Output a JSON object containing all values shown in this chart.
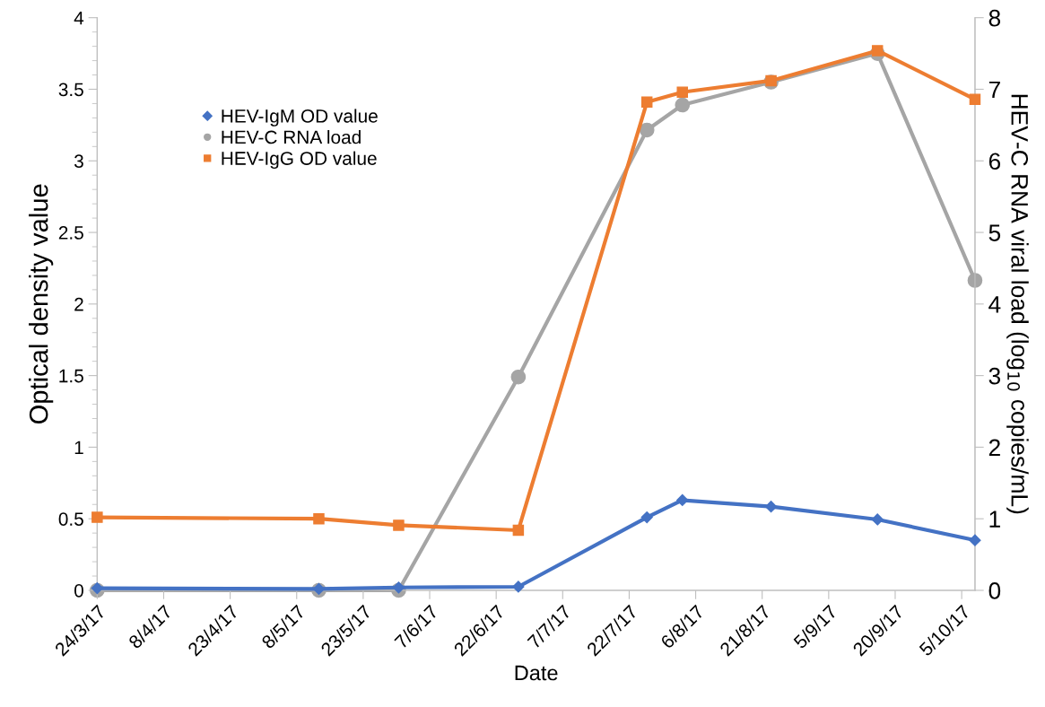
{
  "chart_data": {
    "type": "line",
    "xlabel": "Date",
    "ylabel": "Optical density value",
    "y2label": "HEV-C RNA viral load (log$_{10}$ copies/mL)",
    "x": [
      "2017-03-24",
      "2017-05-13",
      "2017-05-31",
      "2017-06-27",
      "2017-07-26",
      "2017-08-03",
      "2017-08-23",
      "2017-09-16",
      "2017-10-08"
    ],
    "series": [
      {
        "name": "HEV-IgM OD value",
        "color": "#4472c4",
        "marker": "diamond",
        "values": [
          0.015,
          0.01,
          0.02,
          0.025,
          0.51,
          0.63,
          0.585,
          0.495,
          0.35
        ]
      },
      {
        "name": "HEV-C RNA load",
        "color": "#a5a5a5",
        "marker": "circle",
        "axis": "y2",
        "values": [
          0,
          0,
          0,
          2.98,
          6.43,
          6.78,
          7.1,
          7.5,
          4.33
        ]
      },
      {
        "name": "HEV-IgG OD value",
        "color": "#ed7d31",
        "marker": "square",
        "values": [
          0.51,
          0.5,
          0.455,
          0.42,
          3.41,
          3.48,
          3.56,
          3.77,
          3.43
        ]
      }
    ],
    "xlim": [
      "2017-03-24",
      "2017-10-08"
    ],
    "xticks": [
      {
        "value": "2017-03-24",
        "label": "24/3/17"
      },
      {
        "value": "2017-04-08",
        "label": "8/4/17"
      },
      {
        "value": "2017-04-23",
        "label": "23/4/17"
      },
      {
        "value": "2017-05-08",
        "label": "8/5/17"
      },
      {
        "value": "2017-05-23",
        "label": "23/5/17"
      },
      {
        "value": "2017-06-07",
        "label": "7/6/17"
      },
      {
        "value": "2017-06-22",
        "label": "22/6/17"
      },
      {
        "value": "2017-07-07",
        "label": "7/7/17"
      },
      {
        "value": "2017-07-22",
        "label": "22/7/17"
      },
      {
        "value": "2017-08-06",
        "label": "6/8/17"
      },
      {
        "value": "2017-08-21",
        "label": "21/8/17"
      },
      {
        "value": "2017-09-05",
        "label": "5/9/17"
      },
      {
        "value": "2017-09-20",
        "label": "20/9/17"
      },
      {
        "value": "2017-10-05",
        "label": "5/10/17"
      }
    ],
    "ylim": [
      0,
      4
    ],
    "yticks": [
      0,
      0.5,
      1,
      1.5,
      2,
      2.5,
      3,
      3.5,
      4
    ],
    "y2lim": [
      0,
      8
    ],
    "y2ticks": [
      0,
      1,
      2,
      3,
      4,
      5,
      6,
      7,
      8
    ],
    "grid": false,
    "legend": "top left",
    "line_style": "solid"
  }
}
